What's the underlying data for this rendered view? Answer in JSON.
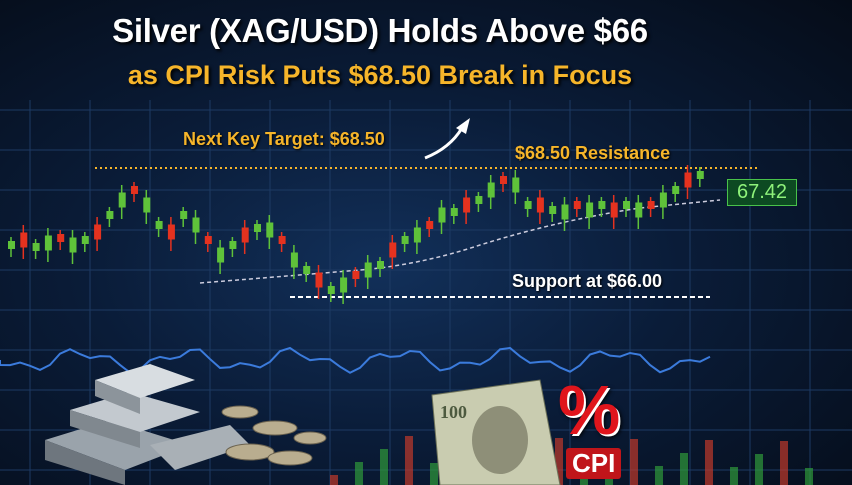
{
  "headline": {
    "line1": "Silver (XAG/USD) Holds Above $66",
    "line2": "as CPI Risk Puts $68.50 Break in Focus"
  },
  "annotations": {
    "target": "Next Key Target: $68.50",
    "resistance": "$68.50 Resistance",
    "support": "Support at $66.00",
    "price": "67.42",
    "cpi_label": "CPI",
    "cpi_symbol": "%"
  },
  "colors": {
    "accent": "#f6b52a",
    "up": "#5fc23a",
    "down": "#e5321f",
    "price_box": "#0d4a22",
    "cpi": "#e0151c"
  },
  "icons": [
    "arrow-up-right-icon",
    "silver-bars-icon",
    "coins-icon",
    "dollar-bill-icon"
  ]
}
